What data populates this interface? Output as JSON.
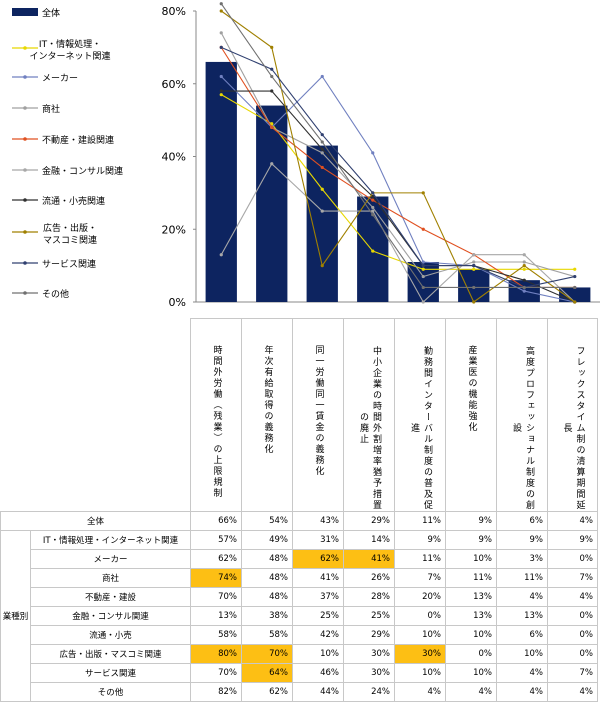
{
  "chart_data": {
    "type": "bar",
    "ylim": [
      0,
      80
    ],
    "y_ticks": [
      "0%",
      "20%",
      "40%",
      "60%",
      "80%"
    ],
    "categories": [
      "時間外労働（残業）の上限規制",
      "年次有給取得の義務化",
      "同一労働同一賃金の義務化",
      "中小企業の時間外割増率猶予措置の廃止",
      "勤務間インターバル制度の普及促進",
      "産業医の機能強化",
      "高度プロフェッショナル制度の創設",
      "フレックスタイム制の清算期間延長"
    ],
    "bar_series": {
      "name": "全体",
      "values": [
        66,
        54,
        43,
        29,
        11,
        9,
        6,
        4
      ],
      "color": "#0d2460"
    },
    "line_series": [
      {
        "name": "IT・情報処理・\nインターネット関連",
        "values": [
          57,
          49,
          31,
          14,
          9,
          9,
          9,
          9
        ],
        "color": "#e8d800"
      },
      {
        "name": "メーカー",
        "values": [
          62,
          48,
          62,
          41,
          11,
          10,
          3,
          0
        ],
        "color": "#7080c0"
      },
      {
        "name": "商社",
        "values": [
          74,
          48,
          41,
          26,
          7,
          11,
          11,
          7
        ],
        "color": "#a0a0a0"
      },
      {
        "name": "不動産・建設関連",
        "values": [
          70,
          48,
          37,
          28,
          20,
          13,
          4,
          4
        ],
        "color": "#e05020"
      },
      {
        "name": "金融・コンサル関連",
        "values": [
          13,
          38,
          25,
          25,
          0,
          13,
          13,
          0
        ],
        "color": "#a8a8a8"
      },
      {
        "name": "流通・小売関連",
        "values": [
          58,
          58,
          42,
          29,
          10,
          10,
          6,
          0
        ],
        "color": "#303030"
      },
      {
        "name": "広告・出版・\nマスコミ関連",
        "values": [
          80,
          70,
          10,
          30,
          30,
          0,
          10,
          0
        ],
        "color": "#a08000"
      },
      {
        "name": "サービス関連",
        "values": [
          70,
          64,
          46,
          30,
          10,
          10,
          4,
          7
        ],
        "color": "#304070"
      },
      {
        "name": "その他",
        "values": [
          82,
          62,
          44,
          24,
          4,
          4,
          4,
          4
        ],
        "color": "#707070"
      }
    ]
  },
  "table": {
    "group_label": "業種別",
    "rows": [
      {
        "label": "全体",
        "cells": [
          "66%",
          "54%",
          "43%",
          "29%",
          "11%",
          "9%",
          "6%",
          "4%"
        ],
        "hl": []
      },
      {
        "label": "IT・情報処理・インターネット関連",
        "cells": [
          "57%",
          "49%",
          "31%",
          "14%",
          "9%",
          "9%",
          "9%",
          "9%"
        ],
        "hl": []
      },
      {
        "label": "メーカー",
        "cells": [
          "62%",
          "48%",
          "62%",
          "41%",
          "11%",
          "10%",
          "3%",
          "0%"
        ],
        "hl": [
          2,
          3
        ]
      },
      {
        "label": "商社",
        "cells": [
          "74%",
          "48%",
          "41%",
          "26%",
          "7%",
          "11%",
          "11%",
          "7%"
        ],
        "hl": [
          0
        ]
      },
      {
        "label": "不動産・建設",
        "cells": [
          "70%",
          "48%",
          "37%",
          "28%",
          "20%",
          "13%",
          "4%",
          "4%"
        ],
        "hl": []
      },
      {
        "label": "金融・コンサル関連",
        "cells": [
          "13%",
          "38%",
          "25%",
          "25%",
          "0%",
          "13%",
          "13%",
          "0%"
        ],
        "hl": []
      },
      {
        "label": "流通・小売",
        "cells": [
          "58%",
          "58%",
          "42%",
          "29%",
          "10%",
          "10%",
          "6%",
          "0%"
        ],
        "hl": []
      },
      {
        "label": "広告・出版・マスコミ関連",
        "cells": [
          "80%",
          "70%",
          "10%",
          "30%",
          "30%",
          "0%",
          "10%",
          "0%"
        ],
        "hl": [
          0,
          1,
          4
        ]
      },
      {
        "label": "サービス関連",
        "cells": [
          "70%",
          "64%",
          "46%",
          "30%",
          "10%",
          "10%",
          "4%",
          "7%"
        ],
        "hl": [
          1
        ]
      },
      {
        "label": "その他",
        "cells": [
          "82%",
          "62%",
          "44%",
          "24%",
          "4%",
          "4%",
          "4%",
          "4%"
        ],
        "hl": []
      }
    ]
  }
}
